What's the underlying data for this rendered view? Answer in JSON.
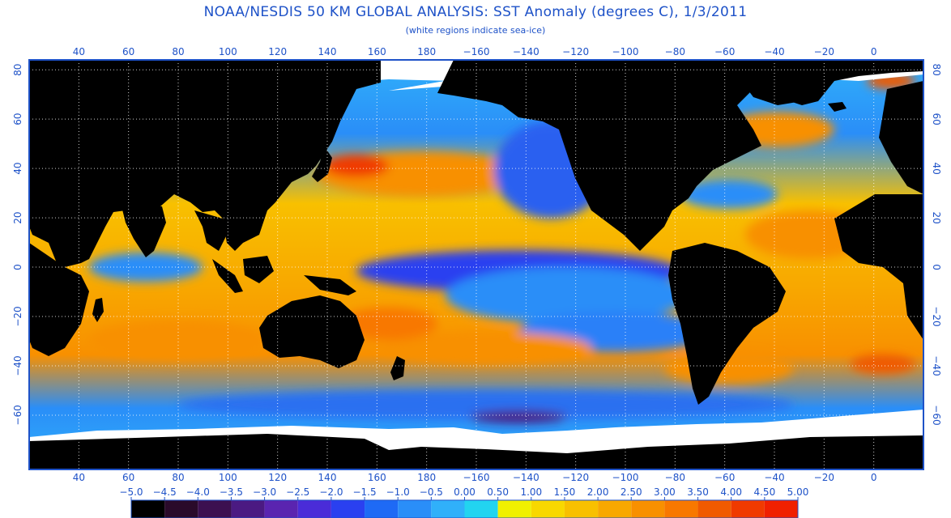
{
  "title": "NOAA/NESDIS 50 KM GLOBAL ANALYSIS: SST Anomaly (degrees C), 1/3/2011",
  "subtitle": "(white regions indicate sea-ice)",
  "map": {
    "lon_ticks": [
      "40",
      "60",
      "80",
      "100",
      "120",
      "140",
      "160",
      "180",
      "−160",
      "−140",
      "−120",
      "−100",
      "−80",
      "−60",
      "−40",
      "−20",
      "0"
    ],
    "lon_values": [
      40,
      60,
      80,
      100,
      120,
      140,
      160,
      180,
      200,
      220,
      240,
      260,
      280,
      300,
      320,
      340,
      360
    ],
    "lon_range": [
      20,
      380
    ],
    "lat_ticks": [
      "80",
      "60",
      "40",
      "20",
      "0",
      "−20",
      "−40",
      "−60"
    ],
    "lat_values": [
      80,
      60,
      40,
      20,
      0,
      -20,
      -40,
      -60
    ],
    "lat_range": [
      -82,
      84
    ],
    "colors": {
      "land": "#000000",
      "ice": "#ffffff",
      "frame": "#1e52c8",
      "grid": "#ffffff"
    }
  },
  "legend": {
    "labels": [
      "−5.0",
      "−4.5",
      "−4.0",
      "−3.5",
      "−3.0",
      "−2.5",
      "−2.0",
      "−1.5",
      "−1.0",
      "−0.5",
      "0.00",
      "0.50",
      "1.00",
      "1.50",
      "2.00",
      "2.50",
      "3.00",
      "3.50",
      "4.00",
      "4.50",
      "5.00"
    ],
    "colors": [
      "#000000",
      "#2a0a2a",
      "#3c1050",
      "#4b1a82",
      "#5a24b0",
      "#4a2cd8",
      "#2a40f0",
      "#1e6af5",
      "#2a8ef8",
      "#30b0fa",
      "#22d4f0",
      "#f0f000",
      "#f8d800",
      "#f8c000",
      "#f8a800",
      "#f89000",
      "#f87800",
      "#f05a00",
      "#f03a00",
      "#f02000",
      "#f00000"
    ]
  }
}
